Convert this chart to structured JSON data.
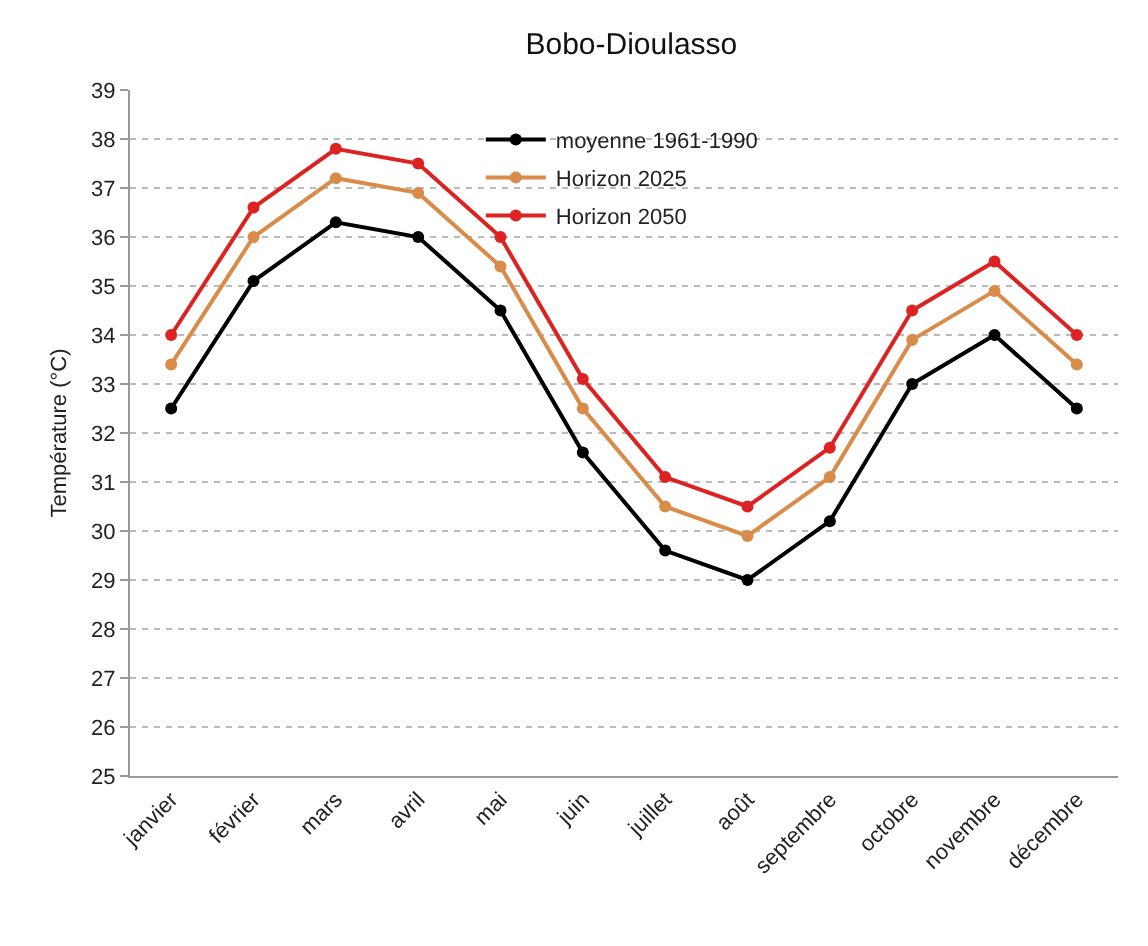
{
  "chart_data": {
    "type": "line",
    "title": "Bobo-Dioulasso",
    "ylabel": "Température (°C)",
    "categories": [
      "janvier",
      "février",
      "mars",
      "avril",
      "mai",
      "juin",
      "juillet",
      "août",
      "septembre",
      "octobre",
      "novembre",
      "décembre"
    ],
    "series": [
      {
        "name": "moyenne 1961-1990",
        "color": "#000000",
        "values": [
          32.5,
          35.1,
          36.3,
          36.0,
          34.5,
          31.6,
          29.6,
          29.0,
          30.2,
          33.0,
          34.0,
          32.5
        ]
      },
      {
        "name": "Horizon 2025",
        "color": "#d98c4a",
        "values": [
          33.4,
          36.0,
          37.2,
          36.9,
          35.4,
          32.5,
          30.5,
          29.9,
          31.1,
          33.9,
          34.9,
          33.4
        ]
      },
      {
        "name": "Horizon 2050",
        "color": "#dd2222",
        "values": [
          34.0,
          36.6,
          37.8,
          37.5,
          36.0,
          33.1,
          31.1,
          30.5,
          31.7,
          34.5,
          35.5,
          34.0
        ]
      }
    ],
    "ylim": [
      25,
      39
    ],
    "yticks": [
      25,
      26,
      27,
      28,
      29,
      30,
      31,
      32,
      33,
      34,
      35,
      36,
      37,
      38,
      39
    ],
    "grid": "y",
    "legend": "top",
    "marker": "circle",
    "line_style": "solid"
  }
}
